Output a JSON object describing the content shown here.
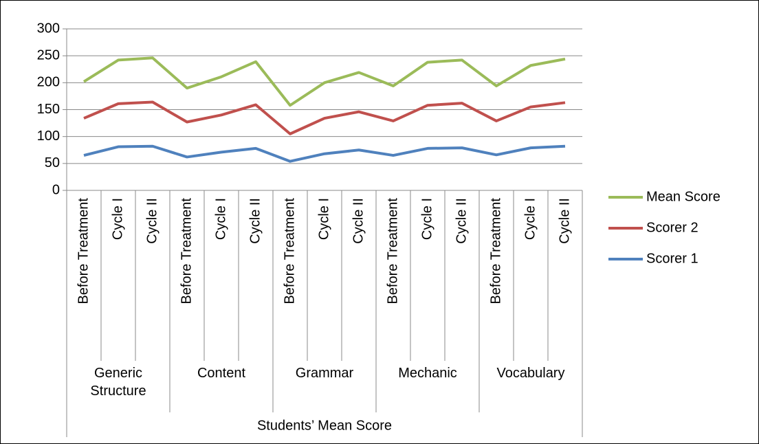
{
  "chart_data": {
    "type": "line",
    "stacked": true,
    "categories": [
      "Before Treatment",
      "Cycle I",
      "Cycle II",
      "Before Treatment",
      "Cycle I",
      "Cycle II",
      "Before Treatment",
      "Cycle I",
      "Cycle II",
      "Before Treatment",
      "Cycle I",
      "Cycle II",
      "Before Treatment",
      "Cycle I",
      "Cycle II"
    ],
    "groups": [
      "Generic Structure",
      "Content",
      "Grammar",
      "Mechanic",
      "Vocabulary"
    ],
    "x_label": "Students’ Mean Score",
    "series": [
      {
        "name": "Scorer 1",
        "color": "#4f81bd",
        "values": [
          65,
          81,
          82,
          62,
          71,
          78,
          54,
          68,
          75,
          65,
          78,
          79,
          66,
          79,
          82
        ]
      },
      {
        "name": "Scorer 2",
        "color": "#c0504d",
        "values": [
          69,
          80,
          82,
          65,
          69,
          81,
          51,
          66,
          71,
          64,
          80,
          83,
          63,
          76,
          81
        ]
      },
      {
        "name": "Mean Score",
        "color": "#9bbb59",
        "values": [
          68,
          81,
          82,
          63,
          71,
          80,
          53,
          66,
          73,
          65,
          80,
          80,
          65,
          77,
          81
        ]
      }
    ],
    "ylim": [
      0,
      300
    ],
    "yticks": [
      0,
      50,
      100,
      150,
      200,
      250,
      300
    ],
    "grid": true,
    "legend": "right"
  }
}
